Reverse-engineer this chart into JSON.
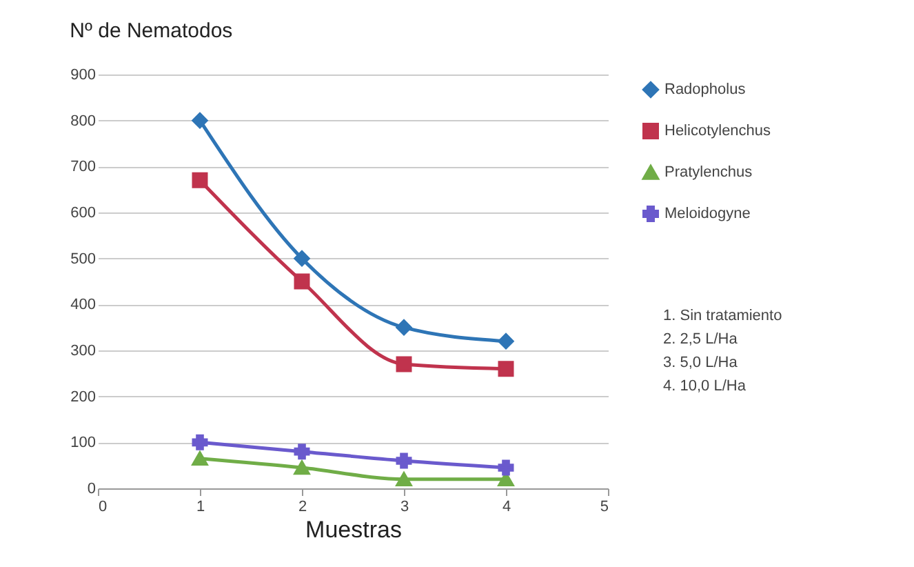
{
  "chart_data": {
    "type": "line",
    "title": "Nº de Nematodos",
    "xlabel": "Muestras",
    "x": [
      1,
      2,
      3,
      4
    ],
    "xlim": [
      0,
      5
    ],
    "xticks": [
      0,
      1,
      2,
      3,
      4,
      5
    ],
    "ylim": [
      0,
      900
    ],
    "yticks": [
      0,
      100,
      200,
      300,
      400,
      500,
      600,
      700,
      800,
      900
    ],
    "grid": "y",
    "legend": "right",
    "series": [
      {
        "name": "Radopholus",
        "color": "#2e75b6",
        "marker": "diamond",
        "values": [
          800,
          500,
          350,
          320
        ]
      },
      {
        "name": "Helicotylenchus",
        "color": "#c0334d",
        "marker": "square",
        "values": [
          670,
          450,
          270,
          260
        ]
      },
      {
        "name": "Pratylenchus",
        "color": "#70ad47",
        "marker": "triangle",
        "values": [
          65,
          45,
          20,
          20
        ]
      },
      {
        "name": "Meloidogyne",
        "color": "#6a5acd",
        "marker": "cross",
        "values": [
          100,
          80,
          60,
          45
        ]
      }
    ],
    "annotations": [
      "1.   Sin tratamiento",
      "2.   2,5 L/Ha",
      "3.   5,0 L/Ha",
      "4.   10,0 L/Ha"
    ]
  }
}
